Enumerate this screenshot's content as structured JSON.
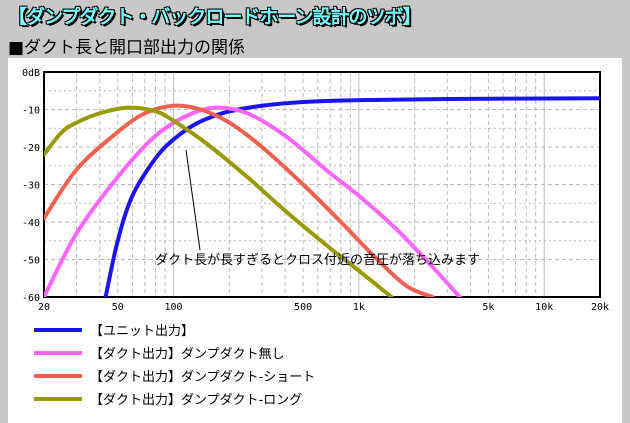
{
  "title": "【ダンプダクト・バックロードホーン設計のツボ】",
  "subtitle": "■ダクト長と開口部出力の関係",
  "chart_data": {
    "type": "line",
    "title": "ダクト長と開口部出力の関係",
    "xscale": "log",
    "xlim": [
      20,
      20000
    ],
    "ylim": [
      -60,
      0
    ],
    "xticks": [
      {
        "v": 20,
        "label": "20"
      },
      {
        "v": 50,
        "label": "50"
      },
      {
        "v": 100,
        "label": "100"
      },
      {
        "v": 500,
        "label": "500"
      },
      {
        "v": 1000,
        "label": "1k"
      },
      {
        "v": 5000,
        "label": "5k"
      },
      {
        "v": 10000,
        "label": "10k"
      },
      {
        "v": 20000,
        "label": "20k"
      }
    ],
    "yticks": [
      {
        "v": 0,
        "label": "0dB"
      },
      {
        "v": -10,
        "label": "-10"
      },
      {
        "v": -20,
        "label": "-20"
      },
      {
        "v": -30,
        "label": "-30"
      },
      {
        "v": -40,
        "label": "-40"
      },
      {
        "v": -50,
        "label": "-50"
      },
      {
        "v": -60,
        "label": "-60"
      }
    ],
    "grid": true,
    "annotation": "ダクト長が長すぎるとクロス付近の音圧が落ち込みます",
    "series": [
      {
        "name": "【ユニット出力】",
        "color": "#1a14f0",
        "x": [
          43,
          50,
          60,
          80,
          100,
          130,
          160,
          200,
          300,
          500,
          1000,
          3000,
          20000
        ],
        "y": [
          -60,
          -45,
          -33,
          -23,
          -18,
          -14,
          -12,
          -10.5,
          -9,
          -8,
          -7.5,
          -7.2,
          -7
        ]
      },
      {
        "name": "【ダクト出力】ダンプダクト無し",
        "color": "#ff66ff",
        "x": [
          20,
          30,
          50,
          80,
          120,
          170,
          250,
          400,
          700,
          1000,
          1600,
          2500,
          3500
        ],
        "y": [
          -60,
          -43,
          -28,
          -17,
          -11.5,
          -9.5,
          -11,
          -17,
          -27,
          -33,
          -42,
          -52,
          -60
        ]
      },
      {
        "name": "【ダクト出力】ダンプダクト-ショート",
        "color": "#f06050",
        "x": [
          20,
          30,
          50,
          70,
          100,
          140,
          200,
          300,
          500,
          800,
          1200,
          1800,
          2500
        ],
        "y": [
          -39,
          -26,
          -16,
          -11,
          -9,
          -10,
          -13.5,
          -20,
          -30,
          -40,
          -49,
          -57,
          -60
        ]
      },
      {
        "name": "【ダクト出力】ダンプダクト-ロング",
        "color": "#999900",
        "x": [
          20,
          25,
          30,
          40,
          57,
          80,
          100,
          150,
          250,
          400,
          700,
          1000,
          1500
        ],
        "y": [
          -22,
          -16,
          -13.5,
          -11,
          -9.5,
          -10.5,
          -13,
          -19,
          -28,
          -37,
          -47,
          -53,
          -60
        ]
      }
    ]
  }
}
